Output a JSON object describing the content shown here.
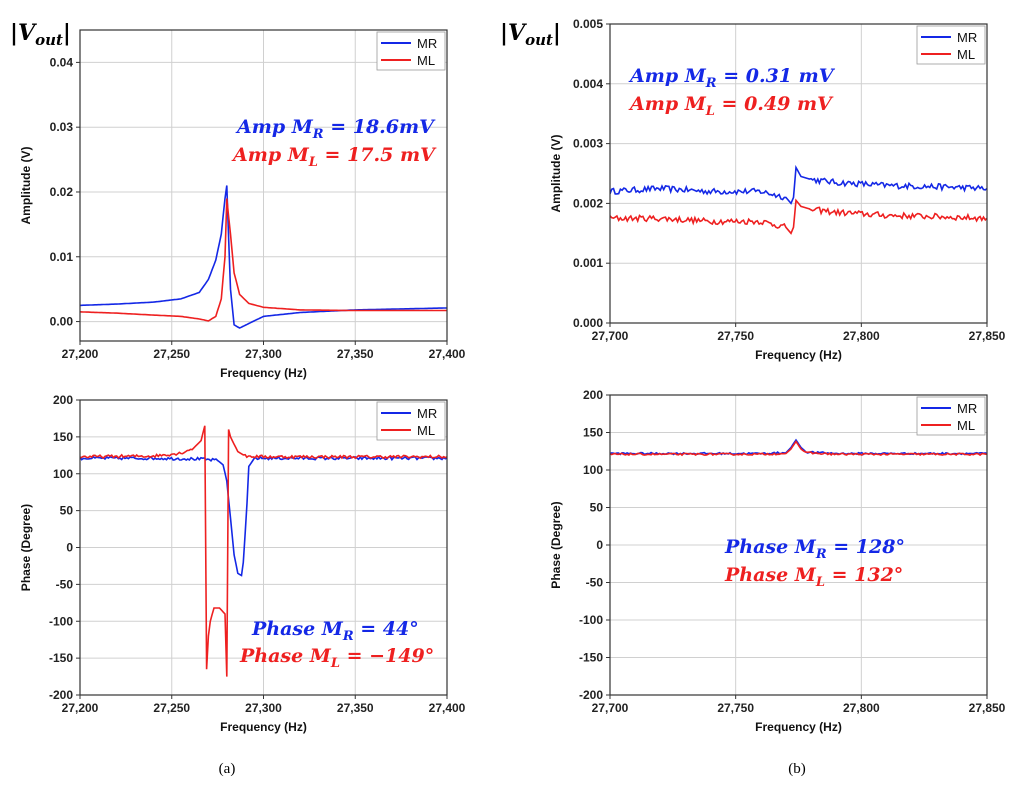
{
  "captions": [
    "(a)",
    "(b)"
  ],
  "vout_label": "|V_out|",
  "colors": {
    "MR": "#1428e6",
    "ML": "#ee2020"
  },
  "chart_data": [
    {
      "type": "line",
      "panel": "a-top",
      "xlabel": "Frequency (Hz)",
      "ylabel": "Amplitude (V)",
      "xlim": [
        27200,
        27400
      ],
      "ylim": [
        -0.003,
        0.045
      ],
      "xticks": [
        27200,
        27250,
        27300,
        27350,
        27400
      ],
      "xtick_labels": [
        "27,200",
        "27,250",
        "27,300",
        "27,350",
        "27,400"
      ],
      "yticks": [
        0.0,
        0.01,
        0.02,
        0.03,
        0.04
      ],
      "ytick_labels": [
        "0.00",
        "0.01",
        "0.02",
        "0.03",
        "0.04"
      ],
      "grid": true,
      "legend_position": "top-right",
      "series": [
        {
          "name": "MR",
          "x": [
            27200,
            27220,
            27240,
            27255,
            27265,
            27270,
            27274,
            27277,
            27279,
            27280,
            27282,
            27284,
            27287,
            27292,
            27300,
            27320,
            27350,
            27400
          ],
          "y": [
            0.0025,
            0.0027,
            0.003,
            0.0035,
            0.0045,
            0.0065,
            0.0095,
            0.0135,
            0.019,
            0.021,
            0.005,
            -0.0005,
            -0.001,
            -0.0003,
            0.0008,
            0.0014,
            0.0018,
            0.0021
          ]
        },
        {
          "name": "ML",
          "x": [
            27200,
            27220,
            27240,
            27255,
            27265,
            27270,
            27274,
            27277,
            27279,
            27280,
            27282,
            27284,
            27287,
            27292,
            27300,
            27320,
            27350,
            27400
          ],
          "y": [
            0.0015,
            0.0013,
            0.001,
            0.0008,
            0.0004,
            0.0001,
            0.0008,
            0.0035,
            0.01,
            0.019,
            0.0135,
            0.0075,
            0.0042,
            0.0028,
            0.0022,
            0.0018,
            0.0017,
            0.0017
          ]
        }
      ],
      "annotations": [
        {
          "text": "Amp M_R = 18.6mV",
          "series": "MR"
        },
        {
          "text": "Amp M_L = 17.5 mV",
          "series": "ML"
        }
      ]
    },
    {
      "type": "line",
      "panel": "b-top",
      "xlabel": "Frequency (Hz)",
      "ylabel": "Amplitude (V)",
      "xlim": [
        27700,
        27850
      ],
      "ylim": [
        0.0,
        0.005
      ],
      "xticks": [
        27700,
        27750,
        27800,
        27850
      ],
      "xtick_labels": [
        "27,700",
        "27,750",
        "27,800",
        "27,850"
      ],
      "yticks": [
        0.0,
        0.001,
        0.002,
        0.003,
        0.004,
        0.005
      ],
      "ytick_labels": [
        "0.000",
        "0.001",
        "0.002",
        "0.003",
        "0.004",
        "0.005"
      ],
      "grid": true,
      "legend_position": "top-right",
      "series": [
        {
          "name": "MR",
          "x": [
            27700,
            27720,
            27740,
            27760,
            27770,
            27772,
            27773,
            27774,
            27776,
            27780,
            27790,
            27810,
            27830,
            27850
          ],
          "y": [
            0.0022,
            0.00225,
            0.0022,
            0.0022,
            0.0021,
            0.002,
            0.0021,
            0.0026,
            0.00245,
            0.0024,
            0.00235,
            0.0023,
            0.00228,
            0.00225
          ]
        },
        {
          "name": "ML",
          "x": [
            27700,
            27720,
            27740,
            27760,
            27770,
            27772,
            27773,
            27774,
            27776,
            27780,
            27790,
            27810,
            27830,
            27850
          ],
          "y": [
            0.00175,
            0.00175,
            0.0017,
            0.0017,
            0.0016,
            0.0015,
            0.0016,
            0.00205,
            0.00195,
            0.0019,
            0.00185,
            0.0018,
            0.00178,
            0.00175
          ]
        }
      ],
      "annotations": [
        {
          "text": "Amp M_R = 0.31 mV",
          "series": "MR"
        },
        {
          "text": "Amp M_L = 0.49 mV",
          "series": "ML"
        }
      ]
    },
    {
      "type": "line",
      "panel": "a-bottom",
      "xlabel": "Frequency (Hz)",
      "ylabel": "Phase (Degree)",
      "xlim": [
        27200,
        27400
      ],
      "ylim": [
        -200,
        200
      ],
      "xticks": [
        27200,
        27250,
        27300,
        27350,
        27400
      ],
      "xtick_labels": [
        "27,200",
        "27,250",
        "27,300",
        "27,350",
        "27,400"
      ],
      "yticks": [
        -200,
        -150,
        -100,
        -50,
        0,
        50,
        100,
        150,
        200
      ],
      "ytick_labels": [
        "-200",
        "-150",
        "-100",
        "-50",
        "0",
        "50",
        "100",
        "150",
        "200"
      ],
      "grid": true,
      "legend_position": "top-right",
      "series": [
        {
          "name": "MR",
          "x": [
            27200,
            27240,
            27265,
            27275,
            27278,
            27280,
            27282,
            27284,
            27286,
            27288,
            27289,
            27291,
            27292,
            27295,
            27300,
            27350,
            27400
          ],
          "y": [
            121,
            121,
            120,
            118,
            112,
            90,
            40,
            -10,
            -35,
            -38,
            -20,
            60,
            110,
            121,
            121,
            121,
            121
          ]
        },
        {
          "name": "ML",
          "x": [
            27200,
            27240,
            27255,
            27262,
            27266,
            27268,
            27269,
            27270,
            27271,
            27273,
            27276,
            27279,
            27280,
            27281,
            27282,
            27284,
            27286,
            27290,
            27300,
            27350,
            27400
          ],
          "y": [
            123,
            124,
            128,
            135,
            145,
            165,
            -165,
            -120,
            -100,
            -82,
            -82,
            -90,
            -175,
            160,
            150,
            140,
            130,
            124,
            123,
            123,
            123
          ]
        }
      ],
      "annotations": [
        {
          "text": "Phase M_R = 44°",
          "series": "MR"
        },
        {
          "text": "Phase M_L = −149°",
          "series": "ML"
        }
      ]
    },
    {
      "type": "line",
      "panel": "b-bottom",
      "xlabel": "Frequency (Hz)",
      "ylabel": "Phase (Degree)",
      "xlim": [
        27700,
        27850
      ],
      "ylim": [
        -200,
        200
      ],
      "xticks": [
        27700,
        27750,
        27800,
        27850
      ],
      "xtick_labels": [
        "27,700",
        "27,750",
        "27,800",
        "27,850"
      ],
      "yticks": [
        -200,
        -150,
        -100,
        -50,
        0,
        50,
        100,
        150,
        200
      ],
      "ytick_labels": [
        "-200",
        "-150",
        "-100",
        "-50",
        "0",
        "50",
        "100",
        "150",
        "200"
      ],
      "grid": true,
      "legend_position": "top-right",
      "series": [
        {
          "name": "MR",
          "x": [
            27700,
            27760,
            27770,
            27772,
            27774,
            27776,
            27778,
            27790,
            27850
          ],
          "y": [
            122,
            122,
            123,
            130,
            140,
            130,
            124,
            122,
            122
          ]
        },
        {
          "name": "ML",
          "x": [
            27700,
            27760,
            27770,
            27772,
            27774,
            27776,
            27778,
            27790,
            27850
          ],
          "y": [
            121,
            121,
            122,
            128,
            138,
            128,
            123,
            121,
            121
          ]
        }
      ],
      "annotations": [
        {
          "text": "Phase M_R = 128°",
          "series": "MR"
        },
        {
          "text": "Phase M_L = 132°",
          "series": "ML"
        }
      ]
    }
  ]
}
